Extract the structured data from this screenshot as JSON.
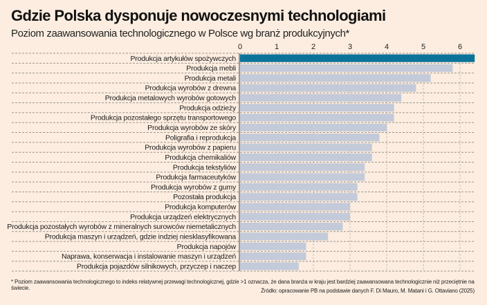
{
  "chart_data": {
    "type": "bar",
    "orientation": "horizontal",
    "title": "Gdzie Polska dysponuje nowoczesnymi technologiami",
    "subtitle": "Poziom zaawansowania technologicznego w Polsce wg branż produkcyjnych*",
    "xlabel": "",
    "ylabel": "",
    "xlim": [
      0,
      6.4
    ],
    "xticks": [
      0,
      1,
      2,
      3,
      4,
      5,
      6
    ],
    "grid": true,
    "highlight_color": "#0b7399",
    "bar_color": "#c3cad9",
    "highlight_index": 0,
    "categories": [
      "Produkcja artykułów spożywczych",
      "Produkcja mebli",
      "Produkcja metali",
      "Produkcja wyrobów z drewna",
      "Produkcja metalowych wyrobów gotowych",
      "Produkcja odzieży",
      "Produkcja pozostałego sprzętu transportowego",
      "Produkcja wyrobów ze skóry",
      "Poligrafia i reprodukcja",
      "Produkcja wyrobów z papieru",
      "Produkcja chemikaliów",
      "Produkcja tekstyliów",
      "Produkcja farmaceutyków",
      "Produkcja wyrobów z gumy",
      "Pozostała produkcja",
      "Produkcja komputerów",
      "Produkcja urządzeń elektrycznych",
      "Produkcja pozostałych wyrobów z mineralnych surowców niemetalicznych",
      "Produkcja maszyn i urządzeń, gdzie indziej niesklasyfikowana",
      "Produkcja napojów",
      "Naprawa, konserwacja i instalowanie maszyn i urządzeń",
      "Produkcja pojazdów silnikowych, przyczep i naczep"
    ],
    "values": [
      6.4,
      5.8,
      5.2,
      4.8,
      4.4,
      4.2,
      4.2,
      4.0,
      3.8,
      3.6,
      3.6,
      3.4,
      3.4,
      3.2,
      3.2,
      3.0,
      3.0,
      2.8,
      2.4,
      1.8,
      1.8,
      1.6
    ]
  },
  "footnote": "* Poziom zaawansowania technologicznego to indeks relatywnej przewagi technologicznej, gdzie >1 oznacza, że dana branża w kraju jest bardziej zaawansowana technologicznie niż przeciętnie na świecie.",
  "source": "Źródło: opracowanie PB na podstawie danych F. Di Mauro, M. Matani i G. Ottaviano (2025)"
}
